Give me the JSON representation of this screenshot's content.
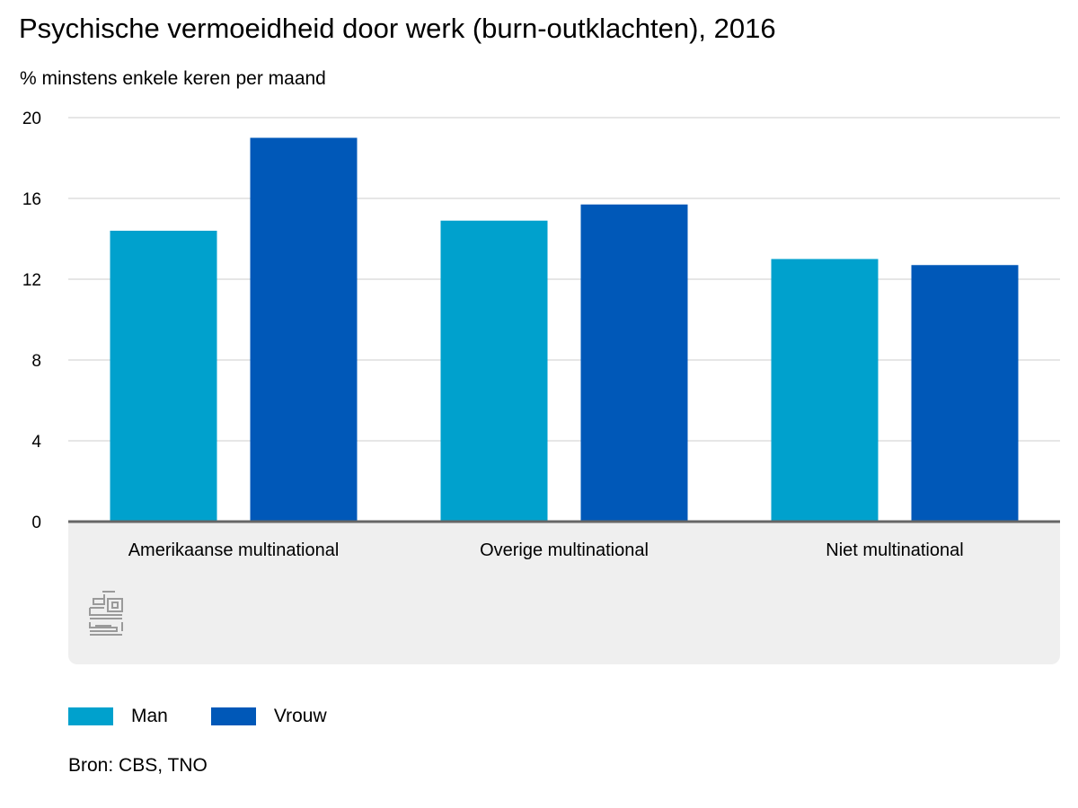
{
  "header": {
    "title": "Psychische vermoeidheid door werk (burn-outklachten), 2016",
    "unit_label": "% minstens enkele keren per maand"
  },
  "chart_data": {
    "type": "bar",
    "title": "Psychische vermoeidheid door werk (burn-outklachten), 2016",
    "ylabel": "% minstens enkele keren per maand",
    "xlabel": "",
    "categories": [
      "Amerikaanse multinational",
      "Overige multinational",
      "Niet multinational"
    ],
    "series": [
      {
        "name": "Man",
        "color": "#00a1cd",
        "values": [
          14.4,
          14.9,
          13.0
        ]
      },
      {
        "name": "Vrouw",
        "color": "#0058b8",
        "values": [
          19.0,
          15.7,
          12.7
        ]
      }
    ],
    "ylim": [
      0,
      20
    ],
    "yticks": [
      "0",
      "4",
      "8",
      "12",
      "16",
      "20"
    ],
    "grid": true,
    "legend": "bottom-left"
  },
  "legend": {
    "items": [
      {
        "label": "Man",
        "color": "#00a1cd"
      },
      {
        "label": "Vrouw",
        "color": "#0058b8"
      }
    ]
  },
  "footer": {
    "source": "Bron: CBS, TNO"
  },
  "logo": {
    "icon": "cbs-logo-icon"
  }
}
